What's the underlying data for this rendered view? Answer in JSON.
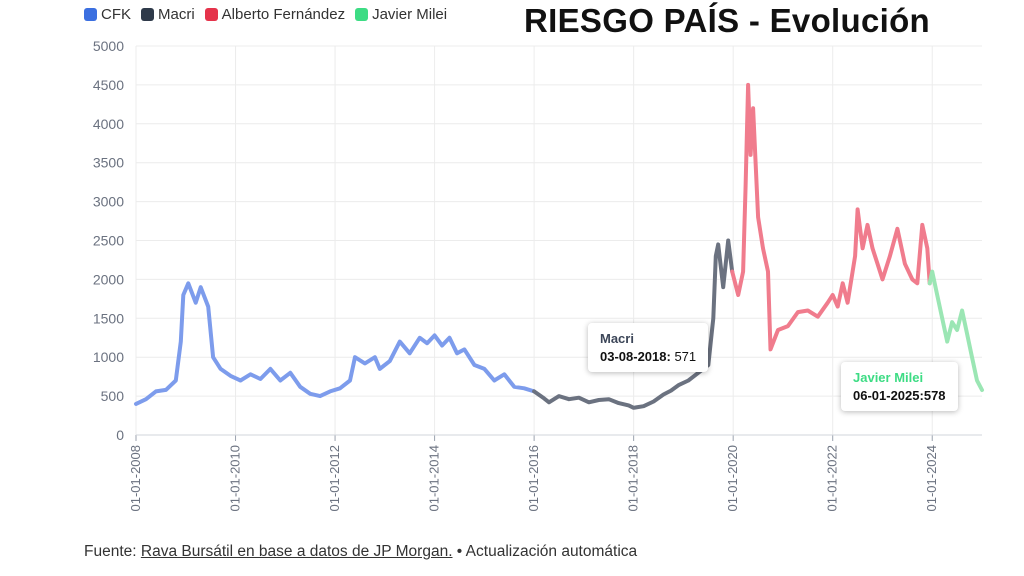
{
  "title": "RIESGO PAÍS - Evolución",
  "legend": [
    {
      "label": "CFK",
      "color": "#3b6fe0"
    },
    {
      "label": "Macri",
      "color": "#2f3a4a"
    },
    {
      "label": "Alberto Fernández",
      "color": "#e5334b"
    },
    {
      "label": "Javier Milei",
      "color": "#3ddc84"
    }
  ],
  "tooltips": [
    {
      "title": "Macri",
      "date": "03-08-2018",
      "value": "571",
      "title_color": "#3c4658"
    },
    {
      "title": "Javier Milei",
      "date": "06-01-2025",
      "value": "578",
      "title_color": "#3ddc84"
    }
  ],
  "footer": {
    "prefix": "Fuente: ",
    "link": "Rava Bursátil en base a datos de JP Morgan.",
    "suffix": " • Actualización automática"
  },
  "chart_data": {
    "type": "line",
    "ylim": [
      0,
      5000
    ],
    "yticks": [
      0,
      500,
      1000,
      1500,
      2000,
      2500,
      3000,
      3500,
      4000,
      4500,
      5000
    ],
    "xlim": [
      2008.0,
      2025.0
    ],
    "xticks": [
      {
        "year": 2008,
        "label": "01-01-2008"
      },
      {
        "year": 2010,
        "label": "01-01-2010"
      },
      {
        "year": 2012,
        "label": "01-01-2012"
      },
      {
        "year": 2014,
        "label": "01-01-2014"
      },
      {
        "year": 2016,
        "label": "01-01-2016"
      },
      {
        "year": 2018,
        "label": "01-01-2018"
      },
      {
        "year": 2020,
        "label": "01-01-2020"
      },
      {
        "year": 2022,
        "label": "01-01-2022"
      },
      {
        "year": 2024,
        "label": "01-01-2024"
      }
    ],
    "grid": true,
    "legend_position": "top-left",
    "series": [
      {
        "name": "CFK",
        "color": "#7d9cec",
        "points": [
          [
            2008.0,
            400
          ],
          [
            2008.2,
            460
          ],
          [
            2008.4,
            560
          ],
          [
            2008.6,
            580
          ],
          [
            2008.8,
            700
          ],
          [
            2008.9,
            1200
          ],
          [
            2008.95,
            1800
          ],
          [
            2009.05,
            1950
          ],
          [
            2009.2,
            1700
          ],
          [
            2009.3,
            1900
          ],
          [
            2009.45,
            1650
          ],
          [
            2009.55,
            1000
          ],
          [
            2009.7,
            850
          ],
          [
            2009.9,
            760
          ],
          [
            2010.1,
            700
          ],
          [
            2010.3,
            780
          ],
          [
            2010.5,
            720
          ],
          [
            2010.7,
            850
          ],
          [
            2010.9,
            700
          ],
          [
            2011.1,
            800
          ],
          [
            2011.3,
            620
          ],
          [
            2011.5,
            530
          ],
          [
            2011.7,
            500
          ],
          [
            2011.9,
            560
          ],
          [
            2012.1,
            600
          ],
          [
            2012.3,
            700
          ],
          [
            2012.4,
            1000
          ],
          [
            2012.6,
            920
          ],
          [
            2012.8,
            1000
          ],
          [
            2012.9,
            850
          ],
          [
            2013.1,
            950
          ],
          [
            2013.3,
            1200
          ],
          [
            2013.5,
            1050
          ],
          [
            2013.7,
            1250
          ],
          [
            2013.85,
            1180
          ],
          [
            2014.0,
            1280
          ],
          [
            2014.15,
            1150
          ],
          [
            2014.3,
            1250
          ],
          [
            2014.45,
            1050
          ],
          [
            2014.6,
            1100
          ],
          [
            2014.8,
            900
          ],
          [
            2015.0,
            850
          ],
          [
            2015.2,
            700
          ],
          [
            2015.4,
            780
          ],
          [
            2015.6,
            620
          ],
          [
            2015.8,
            600
          ],
          [
            2016.0,
            560
          ]
        ]
      },
      {
        "name": "Macri",
        "color": "#6b7280",
        "points": [
          [
            2016.0,
            560
          ],
          [
            2016.2,
            470
          ],
          [
            2016.3,
            420
          ],
          [
            2016.5,
            500
          ],
          [
            2016.7,
            460
          ],
          [
            2016.9,
            480
          ],
          [
            2017.1,
            420
          ],
          [
            2017.3,
            450
          ],
          [
            2017.5,
            460
          ],
          [
            2017.7,
            410
          ],
          [
            2017.9,
            380
          ],
          [
            2018.0,
            350
          ],
          [
            2018.2,
            370
          ],
          [
            2018.4,
            430
          ],
          [
            2018.6,
            520
          ],
          [
            2018.75,
            571
          ],
          [
            2018.9,
            640
          ],
          [
            2019.1,
            700
          ],
          [
            2019.3,
            800
          ],
          [
            2019.5,
            900
          ],
          [
            2019.6,
            1500
          ],
          [
            2019.65,
            2300
          ],
          [
            2019.7,
            2450
          ],
          [
            2019.8,
            1900
          ],
          [
            2019.9,
            2500
          ],
          [
            2019.98,
            2100
          ]
        ]
      },
      {
        "name": "Alberto Fernández",
        "color": "#f07c8d",
        "points": [
          [
            2019.98,
            2100
          ],
          [
            2020.1,
            1800
          ],
          [
            2020.2,
            2100
          ],
          [
            2020.25,
            3200
          ],
          [
            2020.3,
            4500
          ],
          [
            2020.35,
            3600
          ],
          [
            2020.4,
            4200
          ],
          [
            2020.5,
            2800
          ],
          [
            2020.6,
            2400
          ],
          [
            2020.7,
            2100
          ],
          [
            2020.75,
            1100
          ],
          [
            2020.9,
            1350
          ],
          [
            2021.1,
            1400
          ],
          [
            2021.3,
            1580
          ],
          [
            2021.5,
            1600
          ],
          [
            2021.7,
            1520
          ],
          [
            2021.9,
            1700
          ],
          [
            2022.0,
            1800
          ],
          [
            2022.1,
            1650
          ],
          [
            2022.2,
            1950
          ],
          [
            2022.3,
            1700
          ],
          [
            2022.45,
            2300
          ],
          [
            2022.5,
            2900
          ],
          [
            2022.6,
            2400
          ],
          [
            2022.7,
            2700
          ],
          [
            2022.8,
            2400
          ],
          [
            2022.9,
            2200
          ],
          [
            2023.0,
            2000
          ],
          [
            2023.15,
            2300
          ],
          [
            2023.3,
            2650
          ],
          [
            2023.45,
            2200
          ],
          [
            2023.6,
            2000
          ],
          [
            2023.7,
            1950
          ],
          [
            2023.8,
            2700
          ],
          [
            2023.9,
            2400
          ],
          [
            2023.95,
            1950
          ]
        ]
      },
      {
        "name": "Javier Milei",
        "color": "#9be6b4",
        "points": [
          [
            2023.95,
            1950
          ],
          [
            2024.0,
            2100
          ],
          [
            2024.1,
            1800
          ],
          [
            2024.2,
            1500
          ],
          [
            2024.3,
            1200
          ],
          [
            2024.4,
            1450
          ],
          [
            2024.5,
            1350
          ],
          [
            2024.6,
            1600
          ],
          [
            2024.7,
            1300
          ],
          [
            2024.8,
            1000
          ],
          [
            2024.9,
            700
          ],
          [
            2025.0,
            578
          ]
        ]
      }
    ]
  }
}
